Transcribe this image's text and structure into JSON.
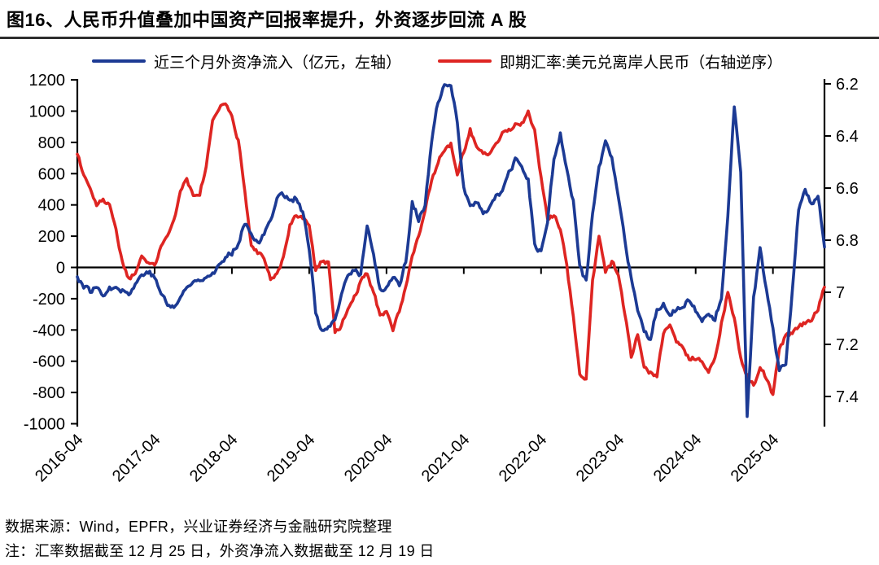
{
  "title": "图16、人民币升值叠加中国资产回报率提升，外资逐步回流 A 股",
  "legend": {
    "inflow_label": "近三个月外资净流入（亿元，左轴）",
    "fx_label": "即期汇率:美元兑离岸人民币（右轴逆序）"
  },
  "footer": {
    "source": "数据来源：Wind，EPFR，兴业证券经济与金融研究院整理",
    "note": "注：汇率数据截至 12 月 25 日，外资净流入数据截至 12 月 19 日"
  },
  "colors": {
    "inflow": "#1c3a94",
    "fx": "#de2522",
    "axis": "#000000",
    "title_rule": "#2e2e2e"
  },
  "chart_data": {
    "type": "line",
    "x_start": "2016-04",
    "x_end": "2025-12",
    "x_step": "monthly",
    "x_tick_labels": [
      "2016-04",
      "2017-04",
      "2018-04",
      "2019-04",
      "2020-04",
      "2021-04",
      "2022-04",
      "2023-04",
      "2024-04",
      "2025-04"
    ],
    "left_axis": {
      "ticks": [
        1200,
        1000,
        800,
        600,
        400,
        200,
        0,
        -200,
        -400,
        -600,
        -800,
        -1000
      ],
      "lim": [
        -1070,
        1210
      ]
    },
    "right_axis": {
      "ticks": [
        6.2,
        6.4,
        6.6,
        6.8,
        7,
        7.2,
        7.4
      ],
      "inverted": true,
      "lim": [
        6.18,
        7.49
      ]
    },
    "series": [
      {
        "name": "近三个月外资净流入（亿元，左轴）",
        "axis": "left",
        "color": "#1c3a94",
        "values": [
          -60,
          -120,
          -150,
          -130,
          -165,
          -140,
          -110,
          -145,
          -170,
          -110,
          -45,
          -20,
          -70,
          -160,
          -240,
          -255,
          -195,
          -130,
          -95,
          -70,
          -55,
          -35,
          10,
          55,
          95,
          160,
          290,
          230,
          150,
          205,
          310,
          450,
          470,
          430,
          445,
          350,
          120,
          -280,
          -415,
          -385,
          -355,
          -170,
          -60,
          -10,
          -45,
          265,
          80,
          -150,
          -120,
          -60,
          -110,
          40,
          420,
          310,
          390,
          800,
          1060,
          1160,
          1150,
          930,
          520,
          385,
          420,
          345,
          390,
          465,
          480,
          600,
          680,
          645,
          560,
          150,
          90,
          300,
          700,
          850,
          620,
          420,
          20,
          -100,
          350,
          640,
          800,
          690,
          430,
          180,
          -80,
          -280,
          -420,
          -460,
          -260,
          -230,
          -290,
          -270,
          -240,
          -220,
          -280,
          -340,
          -300,
          -330,
          -200,
          350,
          1040,
          600,
          -950,
          -200,
          110,
          -150,
          -400,
          -650,
          -600,
          -150,
          380,
          500,
          390,
          450,
          130
        ]
      },
      {
        "name": "即期汇率:美元兑离岸人民币（右轴逆序）",
        "axis": "right",
        "color": "#de2522",
        "values": [
          6.47,
          6.55,
          6.6,
          6.67,
          6.64,
          6.67,
          6.76,
          6.89,
          6.95,
          6.93,
          6.87,
          6.89,
          6.89,
          6.83,
          6.79,
          6.73,
          6.61,
          6.57,
          6.63,
          6.62,
          6.52,
          6.33,
          6.3,
          6.27,
          6.33,
          6.42,
          6.61,
          6.82,
          6.85,
          6.87,
          6.95,
          6.93,
          6.87,
          6.74,
          6.7,
          6.72,
          6.74,
          6.92,
          6.88,
          6.89,
          7.15,
          7.13,
          7.06,
          7.02,
          6.96,
          6.93,
          7.0,
          7.09,
          7.08,
          7.14,
          7.07,
          6.98,
          6.86,
          6.78,
          6.68,
          6.57,
          6.5,
          6.45,
          6.43,
          6.55,
          6.46,
          6.37,
          6.45,
          6.46,
          6.47,
          6.44,
          6.39,
          6.38,
          6.36,
          6.35,
          6.31,
          6.38,
          6.56,
          6.72,
          6.7,
          6.76,
          6.9,
          7.1,
          7.31,
          7.33,
          6.96,
          6.78,
          6.93,
          6.88,
          6.93,
          7.08,
          7.25,
          7.16,
          7.29,
          7.31,
          7.33,
          7.15,
          7.13,
          7.19,
          7.21,
          7.26,
          7.25,
          7.27,
          7.3,
          7.26,
          7.12,
          7.0,
          7.1,
          7.25,
          7.32,
          7.36,
          7.28,
          7.33,
          7.4,
          7.22,
          7.17,
          7.16,
          7.13,
          7.12,
          7.1,
          7.06,
          6.98
        ]
      }
    ]
  }
}
